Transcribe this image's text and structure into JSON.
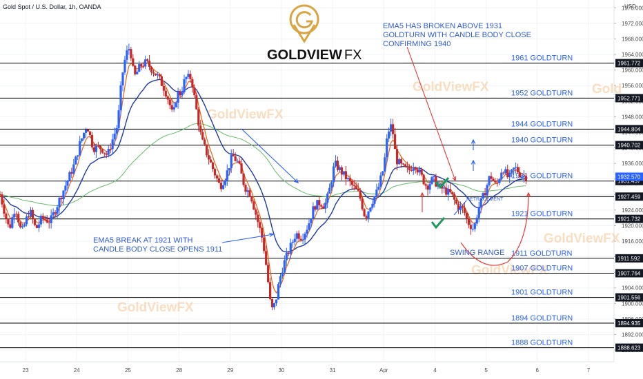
{
  "header": {
    "symbol_title": "Gold Spot / U.S. Dollar, 1h, OANDA",
    "currency": "USD"
  },
  "logo": {
    "text": "GOLDVIEW",
    "suffix": "FX",
    "color": "#d9a441"
  },
  "watermarks": [
    "GoldViewFX",
    "GoldViewFX",
    "GoldViewFX",
    "GoldViewFX",
    "GoldViewFX",
    "Gold"
  ],
  "annotations": {
    "top_note": [
      "EMA5 HAS BROKEN ABOVE 1931",
      "GOLDTURN WITH CANDLE BODY CLOSE",
      "CONFIRMING 1940"
    ],
    "bottom_note": [
      "EMA5 BREAK AT 1921 WITH",
      "CANDLE BODY CLOSE OPENS  1911"
    ],
    "retracement": "RETRACEMENT",
    "swing_range": "SWING RANGE"
  },
  "colors": {
    "up": "#2962ff",
    "down": "#c62828",
    "ema5": "#e8630f",
    "ema_slow": "#1f3aa8",
    "ema_long": "#66bb6a",
    "level_text": "#2962ff",
    "check": "#1a9b5b",
    "swing": "#e53935"
  },
  "chart_data": {
    "type": "candlestick",
    "title": "Gold Spot / U.S. Dollar, 1h, OANDA",
    "y_axis": {
      "label": "USD",
      "range": [
        1885,
        1978
      ],
      "ticks": [
        1976,
        1972,
        1968,
        1964,
        1960,
        1956,
        1952,
        1948,
        1944,
        1940,
        1936,
        1932,
        1928,
        1924,
        1920,
        1916,
        1912,
        1908,
        1904,
        1900,
        1896,
        1892,
        1888
      ]
    },
    "x_axis": {
      "ticks": [
        "23",
        "24",
        "25",
        "28",
        "29",
        "30",
        "31",
        "Apr",
        "4",
        "5",
        "6",
        "7"
      ],
      "tick_positions": [
        0,
        5,
        10,
        15,
        20,
        25,
        30,
        35,
        40,
        45,
        50,
        55
      ],
      "range": [
        -2.5,
        57.5
      ]
    },
    "levels": [
      {
        "value": 1961.772,
        "price_label": "1961.772",
        "label": "1961 GOLDTURN"
      },
      {
        "value": 1952.771,
        "price_label": "1952.771",
        "label": "1952 GOLDTURN"
      },
      {
        "value": 1944.804,
        "price_label": "1944.804",
        "label": "1944 GOLDTURN"
      },
      {
        "value": 1940.702,
        "price_label": "1940.702",
        "label": "1940 GOLDTURN"
      },
      {
        "value": 1931.457,
        "price_label": "1931.457",
        "label": "1931 GOLDTURN"
      },
      {
        "value": 1927.459,
        "price_label": "1927.459",
        "label": ""
      },
      {
        "value": 1921.732,
        "price_label": "1921.732",
        "label": "1921 GOLDTURN"
      },
      {
        "value": 1911.592,
        "price_label": "1911.592",
        "label": "1911 GOLDTURN"
      },
      {
        "value": 1907.764,
        "price_label": "1907.764",
        "label": "1907 GOLDTURN"
      },
      {
        "value": 1901.556,
        "price_label": "1901.556",
        "label": "1901 GOLDTURN"
      },
      {
        "value": 1894.935,
        "price_label": "1894.935",
        "label": "1894 GOLDTURN"
      },
      {
        "value": 1888.623,
        "price_label": "1888.623",
        "label": "1888 GOLDTURN"
      }
    ],
    "last_price": {
      "value": 1932.57,
      "label": "1932.570"
    },
    "close_path": [
      [
        -2.5,
        1928
      ],
      [
        -1.6,
        1919
      ],
      [
        -1.0,
        1925
      ],
      [
        -0.4,
        1918
      ],
      [
        0.4,
        1924
      ],
      [
        1.0,
        1919
      ],
      [
        1.6,
        1922
      ],
      [
        2.4,
        1921
      ],
      [
        3.2,
        1926
      ],
      [
        4.0,
        1931
      ],
      [
        4.8,
        1936
      ],
      [
        5.3,
        1941
      ],
      [
        6.0,
        1946
      ],
      [
        6.6,
        1940
      ],
      [
        7.4,
        1940
      ],
      [
        8.0,
        1938
      ],
      [
        8.6,
        1943
      ],
      [
        9.0,
        1946
      ],
      [
        9.4,
        1958
      ],
      [
        9.8,
        1964
      ],
      [
        10.2,
        1966
      ],
      [
        10.6,
        1958
      ],
      [
        11.2,
        1961
      ],
      [
        11.8,
        1962
      ],
      [
        12.4,
        1960
      ],
      [
        13.0,
        1958
      ],
      [
        13.6,
        1955
      ],
      [
        14.0,
        1952
      ],
      [
        14.4,
        1948
      ],
      [
        14.8,
        1954
      ],
      [
        15.2,
        1954
      ],
      [
        15.6,
        1958
      ],
      [
        16.2,
        1958
      ],
      [
        16.8,
        1948
      ],
      [
        17.2,
        1942
      ],
      [
        17.8,
        1938
      ],
      [
        18.4,
        1934
      ],
      [
        19.0,
        1930
      ],
      [
        19.6,
        1933
      ],
      [
        20.2,
        1938
      ],
      [
        20.8,
        1936
      ],
      [
        21.4,
        1930
      ],
      [
        22.0,
        1928
      ],
      [
        22.6,
        1922
      ],
      [
        23.2,
        1916
      ],
      [
        23.6,
        1908
      ],
      [
        24.0,
        1898
      ],
      [
        24.4,
        1900
      ],
      [
        24.8,
        1906
      ],
      [
        25.2,
        1910
      ],
      [
        25.8,
        1914
      ],
      [
        26.4,
        1918
      ],
      [
        27.0,
        1917
      ],
      [
        27.6,
        1920
      ],
      [
        28.2,
        1925
      ],
      [
        28.8,
        1926
      ],
      [
        29.2,
        1925
      ],
      [
        29.6,
        1928
      ],
      [
        30.2,
        1936
      ],
      [
        30.8,
        1934
      ],
      [
        31.4,
        1932
      ],
      [
        32.0,
        1930
      ],
      [
        32.6,
        1928
      ],
      [
        33.2,
        1922
      ],
      [
        33.8,
        1926
      ],
      [
        34.4,
        1929
      ],
      [
        35.0,
        1935
      ],
      [
        35.4,
        1944
      ],
      [
        35.8,
        1946
      ],
      [
        36.2,
        1937
      ],
      [
        36.8,
        1935
      ],
      [
        37.4,
        1934
      ],
      [
        38.0,
        1936
      ],
      [
        38.6,
        1933
      ],
      [
        39.2,
        1930
      ],
      [
        39.8,
        1932
      ],
      [
        40.4,
        1930
      ],
      [
        41.0,
        1929
      ],
      [
        41.6,
        1928
      ],
      [
        42.2,
        1925
      ],
      [
        42.8,
        1924
      ],
      [
        43.2,
        1921
      ],
      [
        43.8,
        1919
      ],
      [
        44.2,
        1924
      ],
      [
        44.8,
        1928
      ],
      [
        45.4,
        1933
      ],
      [
        46.0,
        1930
      ],
      [
        46.6,
        1935
      ],
      [
        47.2,
        1932
      ],
      [
        47.8,
        1935
      ],
      [
        48.4,
        1933
      ],
      [
        48.9,
        1932.6
      ]
    ],
    "series": [
      {
        "name": "EMA5",
        "color": "#e8630f",
        "role": "ema5"
      },
      {
        "name": "EMA",
        "color": "#1f3aa8",
        "role": "ema_slow"
      },
      {
        "name": "EMA",
        "color": "#66bb6a",
        "role": "ema_long"
      }
    ]
  }
}
